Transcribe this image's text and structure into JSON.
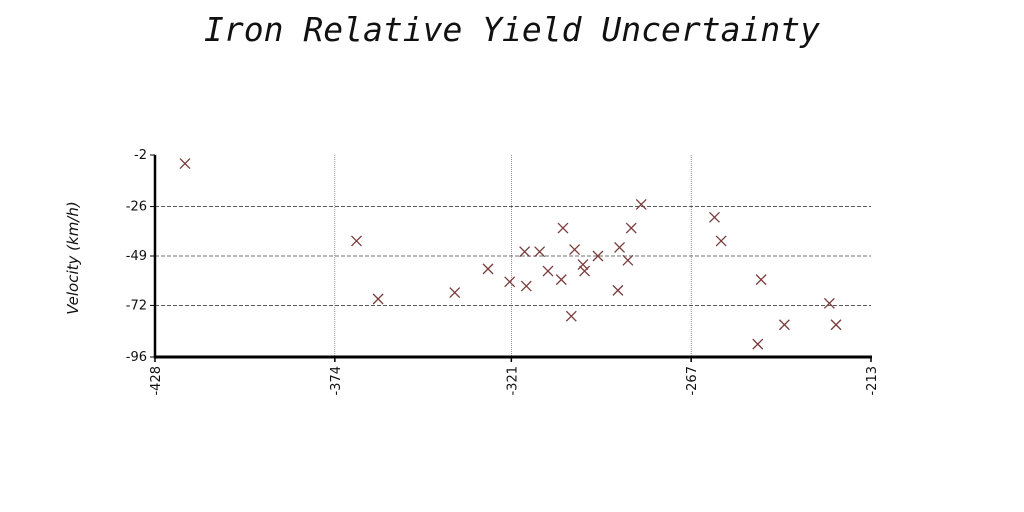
{
  "chart_data": {
    "type": "scatter",
    "title": "Iron Relative Yield Uncertainty",
    "xlabel": "",
    "ylabel": "Velocity (km/h)",
    "xlim": [
      -428,
      -213
    ],
    "ylim": [
      -96,
      -2
    ],
    "xticks": [
      "-428",
      "-374",
      "-321",
      "-267",
      "-213"
    ],
    "yticks": [
      "-2",
      "-26",
      "-49",
      "-72",
      "-96"
    ],
    "grid": true,
    "marker": "x",
    "colors": {
      "marker": "#7a3b3b",
      "axis": "#000000",
      "grid": "#444444"
    },
    "points": [
      {
        "x": -419,
        "y": -6
      },
      {
        "x": -367.5,
        "y": -42
      },
      {
        "x": -361,
        "y": -69
      },
      {
        "x": -338,
        "y": -66
      },
      {
        "x": -328,
        "y": -55
      },
      {
        "x": -321.5,
        "y": -61
      },
      {
        "x": -316.5,
        "y": -63
      },
      {
        "x": -317,
        "y": -47
      },
      {
        "x": -312.5,
        "y": -47
      },
      {
        "x": -310,
        "y": -56
      },
      {
        "x": -306,
        "y": -60
      },
      {
        "x": -305.5,
        "y": -36
      },
      {
        "x": -303,
        "y": -77
      },
      {
        "x": -302,
        "y": -46
      },
      {
        "x": -299.5,
        "y": -53
      },
      {
        "x": -299,
        "y": -56
      },
      {
        "x": -295,
        "y": -49
      },
      {
        "x": -289,
        "y": -65
      },
      {
        "x": -288.5,
        "y": -45
      },
      {
        "x": -286,
        "y": -51
      },
      {
        "x": -285,
        "y": -36
      },
      {
        "x": -282,
        "y": -25
      },
      {
        "x": -260,
        "y": -31
      },
      {
        "x": -258,
        "y": -42
      },
      {
        "x": -246,
        "y": -60
      },
      {
        "x": -247,
        "y": -90
      },
      {
        "x": -239,
        "y": -81
      },
      {
        "x": -225.5,
        "y": -71
      },
      {
        "x": -223.5,
        "y": -81
      }
    ]
  }
}
